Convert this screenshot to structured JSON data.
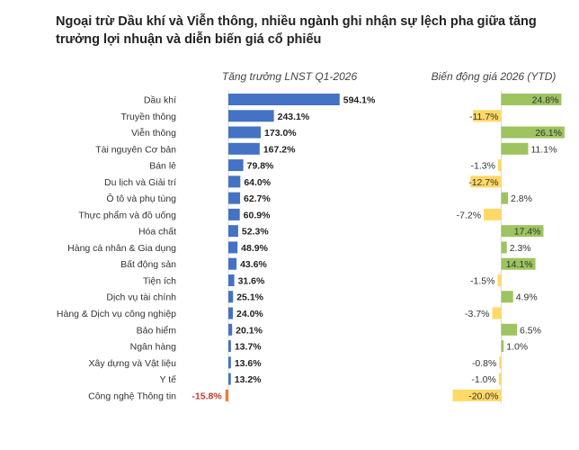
{
  "title": "Ngoại trừ Dầu khí và Viễn thông, nhiều ngành ghi nhận sự lệch pha giữa tăng trưởng lợi nhuận và diễn biến giá cổ phiếu",
  "colors": {
    "profit_positive": "#4472c4",
    "profit_negative": "#ed7d31",
    "price_positive": "#9dc45f",
    "price_negative": "#ffd966",
    "negative_label": "#c0392b"
  },
  "chart_data": [
    {
      "type": "bar",
      "orientation": "horizontal",
      "title": "Tăng trưởng LNST Q1-2026",
      "categories": [
        "Dầu khí",
        "Truyền thông",
        "Viễn thông",
        "Tài nguyên Cơ bản",
        "Bán lẻ",
        "Du lịch và Giải trí",
        "Ô tô và phụ tùng",
        "Thực phẩm và đồ uống",
        "Hóa chất",
        "Hàng cá nhân & Gia dụng",
        "Bất động sản",
        "Tiện ích",
        "Dịch vụ tài chính",
        "Hàng & Dịch vụ công nghiệp",
        "Bảo hiểm",
        "Ngân hàng",
        "Xây dựng và Vật liệu",
        "Y tế",
        "Công nghệ Thông tin"
      ],
      "values": [
        594.1,
        243.1,
        173.0,
        167.2,
        79.8,
        64.0,
        62.7,
        60.9,
        52.3,
        48.9,
        43.6,
        31.6,
        25.1,
        24.0,
        20.1,
        13.7,
        13.6,
        13.2,
        -15.8
      ],
      "labels": [
        "594.1%",
        "243.1%",
        "173.0%",
        "167.2%",
        "79.8%",
        "64.0%",
        "62.7%",
        "60.9%",
        "52.3%",
        "48.9%",
        "43.6%",
        "31.6%",
        "25.1%",
        "24.0%",
        "20.1%",
        "13.7%",
        "13.6%",
        "13.2%",
        "-15.8%"
      ]
    },
    {
      "type": "bar",
      "orientation": "horizontal",
      "title": "Biến động giá 2026 (YTD)",
      "categories": [
        "Dầu khí",
        "Truyền thông",
        "Viễn thông",
        "Tài nguyên Cơ bản",
        "Bán lẻ",
        "Du lịch và Giải trí",
        "Ô tô và phụ tùng",
        "Thực phẩm và đồ uống",
        "Hóa chất",
        "Hàng cá nhân & Gia dụng",
        "Bất động sản",
        "Tiện ích",
        "Dịch vụ tài chính",
        "Hàng & Dịch vụ công nghiệp",
        "Bảo hiểm",
        "Ngân hàng",
        "Xây dựng và Vật liệu",
        "Y tế",
        "Công nghệ Thông tin"
      ],
      "values": [
        24.8,
        -11.7,
        26.1,
        11.1,
        -1.3,
        -12.7,
        2.8,
        -7.2,
        17.4,
        2.3,
        14.1,
        -1.5,
        4.9,
        -3.7,
        6.5,
        1.0,
        -0.8,
        -1.0,
        -20.0
      ],
      "labels": [
        "24.8%",
        "-11.7%",
        "26.1%",
        "11.1%",
        "-1.3%",
        "-12.7%",
        "2.8%",
        "-7.2%",
        "17.4%",
        "2.3%",
        "14.1%",
        "-1.5%",
        "4.9%",
        "-3.7%",
        "6.5%",
        "1.0%",
        "-0.8%",
        "-1.0%",
        "-20.0%"
      ]
    }
  ]
}
